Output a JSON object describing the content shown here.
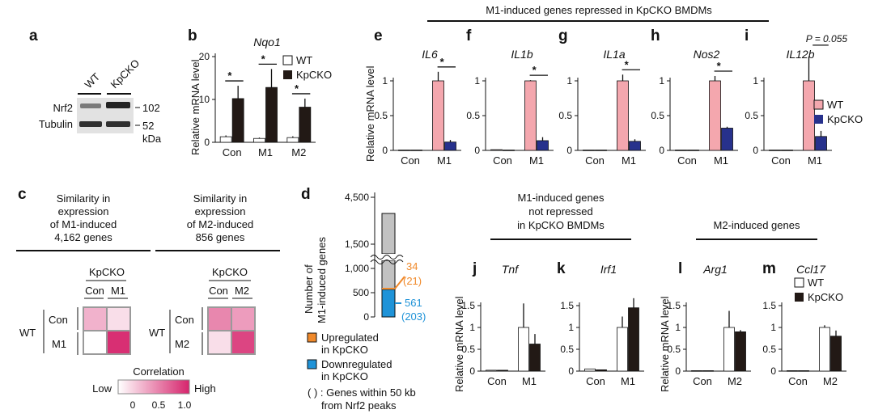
{
  "header_e_i": "M1-induced genes repressed in KpCKO BMDMs",
  "panel_a": {
    "letter": "a",
    "lanes": [
      "WT",
      "KpCKO"
    ],
    "rows": [
      "Nrf2",
      "Tubulin"
    ],
    "markers": [
      "102",
      "52"
    ],
    "unit": "kDa"
  },
  "panel_b": {
    "letter": "b",
    "title": "Nqo1",
    "legend": [
      "WT",
      "KpCKO"
    ],
    "star": "*"
  },
  "panels_e_i": [
    {
      "letter": "e",
      "title": "IL6"
    },
    {
      "letter": "f",
      "title": "IL1b"
    },
    {
      "letter": "g",
      "title": "IL1a"
    },
    {
      "letter": "h",
      "title": "Nos2"
    },
    {
      "letter": "i",
      "title": "IL12b",
      "pvalue": "P = 0.055",
      "legend": [
        "WT",
        "KpCKO"
      ]
    }
  ],
  "panel_c": {
    "letter": "c",
    "title_left": [
      "Similarity in",
      "expression",
      "of M1-induced",
      "4,162 genes"
    ],
    "title_right": [
      "Similarity in",
      "expression",
      "of M2-induced",
      "856 genes"
    ],
    "col_group": "KpCKO",
    "row_group": "WT",
    "left_labels": [
      "Con",
      "M1"
    ],
    "right_labels": [
      "Con",
      "M2"
    ],
    "colorbar_title": "Correlation",
    "colorbar_low": "Low",
    "colorbar_high": "High",
    "colorbar_ticks": [
      "0",
      "0.5",
      "1.0"
    ]
  },
  "panel_d": {
    "letter": "d",
    "ylabel": [
      "Number of",
      "M1-induced genes"
    ],
    "yticks": [
      "4,500",
      "1,500",
      "1,000",
      "500",
      "0"
    ],
    "up_count": "34",
    "up_count_nrf2": "(21)",
    "down_count": "561",
    "down_count_nrf2": "(203)",
    "legend_up": [
      "Upregulated",
      "in KpCKO"
    ],
    "legend_down": [
      "Downregulated",
      "in KpCKO"
    ],
    "legend_note": [
      "( ) : Genes within 50 kb",
      "from Nrf2 peaks"
    ]
  },
  "header_j_k": [
    "M1-induced genes",
    "not repressed",
    "in KpCKO BMDMs"
  ],
  "header_l_m": "M2-induced genes",
  "panels_j_m": [
    {
      "letter": "j",
      "title": "Tnf"
    },
    {
      "letter": "k",
      "title": "Irf1"
    },
    {
      "letter": "l",
      "title": "Arg1"
    },
    {
      "letter": "m",
      "title": "Ccl17",
      "legend": [
        "WT",
        "KpCKO"
      ]
    }
  ],
  "ylabel_common": "Relative mRNA level",
  "chart_data": [
    {
      "id": "b",
      "type": "bar",
      "title": "Nqo1",
      "ylabel": "Relative mRNA level",
      "categories": [
        "Con",
        "M1",
        "M2"
      ],
      "ylim": [
        0,
        20
      ],
      "yticks": [
        0,
        10,
        20
      ],
      "series": [
        {
          "name": "WT",
          "values": [
            1.3,
            0.9,
            1.1
          ],
          "err": [
            0.3,
            0.2,
            0.3
          ]
        },
        {
          "name": "KpCKO",
          "values": [
            10.2,
            12.8,
            8.2
          ],
          "err": [
            3.0,
            4.3,
            2.0
          ]
        }
      ],
      "significance": [
        "*",
        "*",
        "*"
      ]
    },
    {
      "id": "e",
      "type": "bar",
      "title": "IL6",
      "ylabel": "Relative mRNA level",
      "categories": [
        "Con",
        "M1"
      ],
      "ylim": [
        0,
        1
      ],
      "yticks": [
        0,
        0.5,
        1
      ],
      "series": [
        {
          "name": "WT",
          "values": [
            0.005,
            1.0
          ],
          "err": [
            0,
            0.13
          ]
        },
        {
          "name": "KpCKO",
          "values": [
            0.005,
            0.12
          ],
          "err": [
            0,
            0.03
          ]
        }
      ],
      "significance": [
        "",
        "*"
      ]
    },
    {
      "id": "f",
      "type": "bar",
      "title": "IL1b",
      "ylabel": "Relative mRNA level",
      "categories": [
        "Con",
        "M1"
      ],
      "ylim": [
        0,
        1
      ],
      "yticks": [
        0,
        0.5,
        1
      ],
      "series": [
        {
          "name": "WT",
          "values": [
            0.01,
            1.0
          ],
          "err": [
            0,
            0.01
          ]
        },
        {
          "name": "KpCKO",
          "values": [
            0.005,
            0.14
          ],
          "err": [
            0,
            0.05
          ]
        }
      ],
      "significance": [
        "",
        "*"
      ]
    },
    {
      "id": "g",
      "type": "bar",
      "title": "IL1a",
      "ylabel": "Relative mRNA level",
      "categories": [
        "Con",
        "M1"
      ],
      "ylim": [
        0,
        1
      ],
      "yticks": [
        0,
        0.5,
        1
      ],
      "series": [
        {
          "name": "WT",
          "values": [
            0.005,
            1.0
          ],
          "err": [
            0,
            0.09
          ]
        },
        {
          "name": "KpCKO",
          "values": [
            0.005,
            0.13
          ],
          "err": [
            0,
            0.03
          ]
        }
      ],
      "significance": [
        "",
        "*"
      ]
    },
    {
      "id": "h",
      "type": "bar",
      "title": "Nos2",
      "ylabel": "Relative mRNA level",
      "categories": [
        "Con",
        "M1"
      ],
      "ylim": [
        0,
        1
      ],
      "yticks": [
        0,
        0.5,
        1
      ],
      "series": [
        {
          "name": "WT",
          "values": [
            0.005,
            1.0
          ],
          "err": [
            0,
            0.07
          ]
        },
        {
          "name": "KpCKO",
          "values": [
            0.005,
            0.32
          ],
          "err": [
            0,
            0.02
          ]
        }
      ],
      "significance": [
        "",
        "*"
      ]
    },
    {
      "id": "i",
      "type": "bar",
      "title": "IL12b",
      "ylabel": "Relative mRNA level",
      "categories": [
        "Con",
        "M1"
      ],
      "ylim": [
        0,
        1
      ],
      "yticks": [
        0,
        0.5,
        1
      ],
      "series": [
        {
          "name": "WT",
          "values": [
            0.005,
            1.0
          ],
          "err": [
            0,
            0.35
          ]
        },
        {
          "name": "KpCKO",
          "values": [
            0.005,
            0.2
          ],
          "err": [
            0,
            0.08
          ]
        }
      ],
      "significance": [
        "",
        "P = 0.055"
      ]
    },
    {
      "id": "d",
      "type": "bar",
      "title": "",
      "ylabel": "Number of M1-induced genes",
      "categories": [
        "M1-induced"
      ],
      "ylim": [
        0,
        4500
      ],
      "yticks": [
        0,
        500,
        1000,
        1500,
        4500
      ],
      "total": 4162,
      "series": [
        {
          "name": "Upregulated in KpCKO",
          "values": [
            34
          ],
          "nrf2": [
            21
          ]
        },
        {
          "name": "Downregulated in KpCKO",
          "values": [
            561
          ],
          "nrf2": [
            203
          ]
        }
      ]
    },
    {
      "id": "j",
      "type": "bar",
      "title": "Tnf",
      "ylabel": "Relative mRNA level",
      "categories": [
        "Con",
        "M1"
      ],
      "ylim": [
        0,
        1.5
      ],
      "yticks": [
        0,
        0.5,
        1,
        1.5
      ],
      "series": [
        {
          "name": "WT",
          "values": [
            0.02,
            1.0
          ],
          "err": [
            0,
            0.55
          ]
        },
        {
          "name": "KpCKO",
          "values": [
            0.02,
            0.62
          ],
          "err": [
            0,
            0.23
          ]
        }
      ]
    },
    {
      "id": "k",
      "type": "bar",
      "title": "Irf1",
      "ylabel": "Relative mRNA level",
      "categories": [
        "Con",
        "M1"
      ],
      "ylim": [
        0,
        1.5
      ],
      "yticks": [
        0,
        0.5,
        1,
        1.5
      ],
      "series": [
        {
          "name": "WT",
          "values": [
            0.05,
            1.0
          ],
          "err": [
            0,
            0.25
          ]
        },
        {
          "name": "KpCKO",
          "values": [
            0.03,
            1.45
          ],
          "err": [
            0,
            0.22
          ]
        }
      ]
    },
    {
      "id": "l",
      "type": "bar",
      "title": "Arg1",
      "ylabel": "Relative mRNA level",
      "categories": [
        "Con",
        "M2"
      ],
      "ylim": [
        0,
        1.5
      ],
      "yticks": [
        0,
        0.5,
        1,
        1.5
      ],
      "series": [
        {
          "name": "WT",
          "values": [
            0.01,
            1.0
          ],
          "err": [
            0,
            0.38
          ]
        },
        {
          "name": "KpCKO",
          "values": [
            0.01,
            0.9
          ],
          "err": [
            0,
            0.04
          ]
        }
      ]
    },
    {
      "id": "m",
      "type": "bar",
      "title": "Ccl17",
      "ylabel": "Relative mRNA level",
      "categories": [
        "Con",
        "M2"
      ],
      "ylim": [
        0,
        1.5
      ],
      "yticks": [
        0,
        0.5,
        1,
        1.5
      ],
      "series": [
        {
          "name": "WT",
          "values": [
            0.01,
            1.0
          ],
          "err": [
            0,
            0.05
          ]
        },
        {
          "name": "KpCKO",
          "values": [
            0.01,
            0.8
          ],
          "err": [
            0,
            0.13
          ]
        }
      ]
    },
    {
      "id": "c-m1",
      "type": "heatmap",
      "title": "",
      "rows": [
        "Con",
        "M1"
      ],
      "cols": [
        "Con",
        "M1"
      ],
      "values": [
        [
          0.35,
          0.15
        ],
        [
          0.0,
          0.95
        ]
      ]
    },
    {
      "id": "c-m2",
      "type": "heatmap",
      "title": "",
      "rows": [
        "Con",
        "M2"
      ],
      "cols": [
        "Con",
        "M2"
      ],
      "values": [
        [
          0.55,
          0.45
        ],
        [
          0.15,
          0.85
        ]
      ]
    }
  ],
  "colors": {
    "wt_pink": "#f4a7ae",
    "kpcko_blue": "#27318c",
    "kpcko_dark": "#221915",
    "up_orange": "#f0892a",
    "down_blue": "#1f93d8",
    "grey_total": "#c2c2c2",
    "heat_high": "#d6246c"
  }
}
